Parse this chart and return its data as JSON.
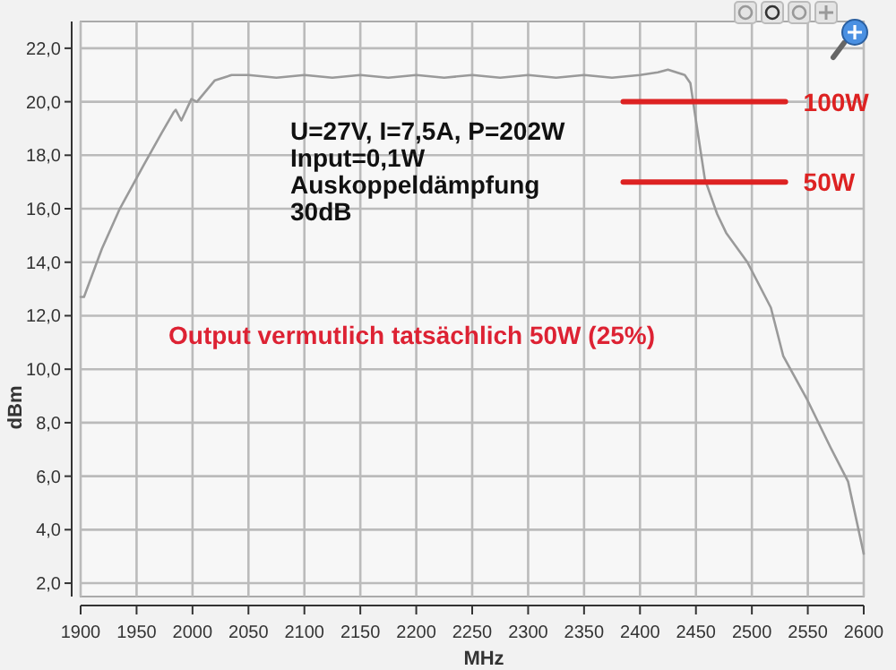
{
  "chart_data": {
    "type": "line",
    "xlabel": "MHz",
    "ylabel": "dBm",
    "xlim": [
      1900,
      2600
    ],
    "xticks": [
      1900,
      1950,
      2000,
      2050,
      2100,
      2150,
      2200,
      2250,
      2300,
      2350,
      2400,
      2450,
      2500,
      2550,
      2600
    ],
    "ylim": [
      1.5,
      23
    ],
    "yticks": [
      {
        "value": 2,
        "label": "2,0"
      },
      {
        "value": 4,
        "label": "4,0"
      },
      {
        "value": 6,
        "label": "6,0"
      },
      {
        "value": 8,
        "label": "8,0"
      },
      {
        "value": 10,
        "label": "10,0"
      },
      {
        "value": 12,
        "label": "12,0"
      },
      {
        "value": 14,
        "label": "14,0"
      },
      {
        "value": 16,
        "label": "16,0"
      },
      {
        "value": 18,
        "label": "18,0"
      },
      {
        "value": 20,
        "label": "20,0"
      },
      {
        "value": 22,
        "label": "22,0"
      }
    ],
    "grid": true,
    "marker": "none",
    "line_style": "solid",
    "series": [
      {
        "color": "#9a9a9a",
        "x": [
          1900,
          1903,
          1919,
          1935,
          1956,
          1972,
          1983,
          1985,
          1990,
          1999,
          2004,
          2020,
          2035,
          2050,
          2075,
          2100,
          2125,
          2150,
          2175,
          2200,
          2225,
          2250,
          2275,
          2300,
          2325,
          2350,
          2375,
          2400,
          2416,
          2425,
          2440,
          2445,
          2450,
          2458,
          2469,
          2477,
          2496,
          2517,
          2528,
          2549,
          2570,
          2586,
          2600
        ],
        "values": [
          12.7,
          12.7,
          14.5,
          16.0,
          17.6,
          18.8,
          19.6,
          19.7,
          19.3,
          20.1,
          20.0,
          20.8,
          21.0,
          21.0,
          20.9,
          21.0,
          20.9,
          21.0,
          20.9,
          21.0,
          20.9,
          21.0,
          20.9,
          21.0,
          20.9,
          21.0,
          20.9,
          21.0,
          21.1,
          21.2,
          21.0,
          20.7,
          19.3,
          17.1,
          15.8,
          15.1,
          14.0,
          12.3,
          10.5,
          8.9,
          7.1,
          5.8,
          3.1
        ]
      },
      {
        "name": "100W",
        "color": "#dd2222",
        "x": [
          2385,
          2530
        ],
        "values": [
          20,
          20
        ]
      },
      {
        "name": "50W",
        "color": "#dd2222",
        "x": [
          2385,
          2530
        ],
        "values": [
          17,
          17
        ]
      }
    ],
    "annotations": [
      "U=27V, I=7,5A, P=202W",
      "Input=0,1W",
      "Auskoppeldämpfung",
      "30dB",
      "Output vermutlich tatsächlich 50W (25%)"
    ]
  }
}
